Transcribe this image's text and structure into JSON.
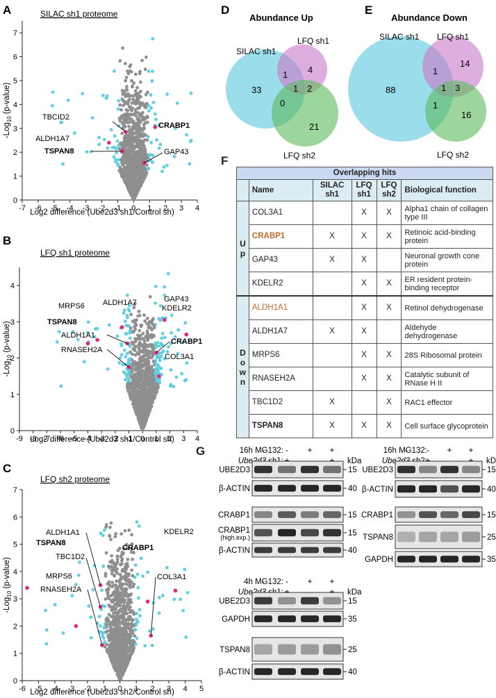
{
  "colors": {
    "grey": "#8f8f8f",
    "cyan": "#5fd0e0",
    "magenta": "#e0287a",
    "silac": "#58c6dc",
    "lfq1": "#c878c8",
    "lfq2": "#5cbb5c",
    "orange": "#c06a2a",
    "header": "#c9d9ef",
    "sub": "#dbecf3"
  },
  "panels": {
    "A": {
      "letter": "A",
      "title": "SILAC sh1 proteome",
      "xlabel": "Log2 difference (Ube2d3 sh1/Control sh)"
    },
    "B": {
      "letter": "B",
      "title": "LFQ sh1 proteome",
      "xlabel": "Log2 difference (Ube2d3 sh1/Control sh)"
    },
    "C": {
      "letter": "C",
      "title": "LFQ sh2 proteome",
      "xlabel": "Log2 difference (Ube2d3 sh2/Control sh)"
    },
    "D": {
      "letter": "D",
      "title": "Abundance Up"
    },
    "E": {
      "letter": "E",
      "title": "Abundance Down"
    },
    "F": {
      "letter": "F"
    },
    "G": {
      "letter": "G"
    }
  },
  "ylabel_prefix": "-Log",
  "ylabel_sub": "10",
  "ylabel_suffix": " (p-value)",
  "chart_data": [
    {
      "type": "scatter",
      "panel": "A",
      "xlim": [
        -7,
        4
      ],
      "ylim": [
        0,
        7.5
      ],
      "xticks": [
        "-7",
        "-6",
        "-5",
        "-4",
        "-3",
        "-2",
        "-1",
        "0",
        "1",
        "2",
        "3",
        "4"
      ],
      "yticks": [
        "0",
        "1",
        "2",
        "3",
        "4",
        "5",
        "6",
        "7"
      ],
      "highlighted": [
        {
          "label": "TBCID2",
          "x": -0.5,
          "y": 2.85,
          "bold": false
        },
        {
          "label": "CRABP1",
          "x": 1.35,
          "y": 3.05,
          "bold": true
        },
        {
          "label": "ALDH1A7",
          "x": -1.55,
          "y": 2.4,
          "bold": false
        },
        {
          "label": "TSPAN8",
          "x": -0.7,
          "y": 2.05,
          "bold": true
        },
        {
          "label": "GAP43",
          "x": 0.65,
          "y": 1.55,
          "bold": false
        }
      ]
    },
    {
      "type": "scatter",
      "panel": "B",
      "xlim": [
        -9,
        4
      ],
      "ylim": [
        0,
        4.5
      ],
      "xticks": [
        "-9",
        "-8",
        "-7",
        "-6",
        "-5",
        "-4",
        "-3",
        "-2",
        "-1",
        "0",
        "1",
        "2",
        "3",
        "4"
      ],
      "yticks": [
        "0",
        "1",
        "2",
        "3",
        "4"
      ],
      "highlighted": [
        {
          "label": "MRPS6",
          "x": -3.3,
          "y": 2.5,
          "bold": false
        },
        {
          "label": "ALDH1A7",
          "x": -1.5,
          "y": 2.85,
          "bold": false
        },
        {
          "label": "GAP43",
          "x": 1.6,
          "y": 3.05,
          "bold": false
        },
        {
          "label": "KDELR2",
          "x": 3.2,
          "y": 2.65,
          "bold": false
        },
        {
          "label": "TSPAN8",
          "x": -4.0,
          "y": 2.4,
          "bold": true
        },
        {
          "label": "ALDH1A1",
          "x": -1.1,
          "y": 2.4,
          "bold": false
        },
        {
          "label": "CRABP1",
          "x": 1.0,
          "y": 2.15,
          "bold": true
        },
        {
          "label": "RNASEH2A",
          "x": -1.0,
          "y": 1.75,
          "bold": false
        },
        {
          "label": "COL3A1",
          "x": 1.2,
          "y": 1.5,
          "bold": false
        }
      ]
    },
    {
      "type": "scatter",
      "panel": "C",
      "xlim": [
        -6,
        5
      ],
      "ylim": [
        0,
        7
      ],
      "xticks": [
        "-6",
        "-5",
        "-4",
        "-3",
        "-2",
        "-1",
        "0",
        "1",
        "2",
        "3",
        "4",
        "5"
      ],
      "yticks": [
        "0",
        "1",
        "2",
        "3",
        "4",
        "5",
        "6",
        "7"
      ],
      "highlighted": [
        {
          "label": "ALDH1A1",
          "x": -1.2,
          "y": 3.5,
          "bold": false
        },
        {
          "label": "KDELR2",
          "x": 3.4,
          "y": 3.3,
          "bold": false
        },
        {
          "label": "TSPAN8",
          "x": -5.7,
          "y": 3.4,
          "bold": true
        },
        {
          "label": "TBC1D2",
          "x": -1.2,
          "y": 2.7,
          "bold": false
        },
        {
          "label": "CRABP1",
          "x": 1.7,
          "y": 2.9,
          "bold": true
        },
        {
          "label": "MRPS6",
          "x": -2.7,
          "y": 2.0,
          "bold": false
        },
        {
          "label": "COL3A1",
          "x": 1.9,
          "y": 1.65,
          "bold": false
        },
        {
          "label": "RNASEH2A",
          "x": -1.1,
          "y": 1.3,
          "bold": false
        }
      ]
    }
  ],
  "venn": {
    "D": {
      "silac": "SILAC sh1",
      "lfq1": "LFQ sh1",
      "lfq2": "LFQ sh2",
      "n_silac": "33",
      "n_lfq1": "4",
      "n_lfq2": "21",
      "n_s1": "1",
      "n_s2": "0",
      "n_12": "2",
      "n_all": "1"
    },
    "E": {
      "silac": "SILAC sh1",
      "lfq1": "LFQ sh1",
      "lfq2": "LFQ sh2",
      "n_silac": "88",
      "n_lfq1": "14",
      "n_lfq2": "16",
      "n_s1": "1",
      "n_s2": "1",
      "n_12": "3",
      "n_all": "1"
    }
  },
  "table": {
    "header": "Overlapping hits",
    "columns": [
      "Name",
      "SILAC sh1",
      "LFQ sh1",
      "LFQ sh2",
      "Biological function"
    ],
    "group_up": "Up",
    "group_down": "Down",
    "rows": [
      {
        "name": "COL3A1",
        "c1": "",
        "c2": "X",
        "c3": "X",
        "func": "Alpha1 chain of collagen type III"
      },
      {
        "name": "CRABP1",
        "c1": "X",
        "c2": "X",
        "c3": "X",
        "func": "Retinoic acid-binding protein"
      },
      {
        "name": "GAP43",
        "c1": "X",
        "c2": "X",
        "c3": "",
        "func": "Neuronal growth cone protein"
      },
      {
        "name": "KDELR2",
        "c1": "",
        "c2": "X",
        "c3": "X",
        "func": "ER resident protein-binding receptor"
      },
      {
        "name": "ALDH1A1",
        "c1": "",
        "c2": "X",
        "c3": "X",
        "func": "Retinol dehydrogenase"
      },
      {
        "name": "ALDH1A7",
        "c1": "X",
        "c2": "X",
        "c3": "",
        "func": "Aldehyde dehydrogenase"
      },
      {
        "name": "MRPS6",
        "c1": "",
        "c2": "X",
        "c3": "X",
        "func": "28S Ribosomal protein"
      },
      {
        "name": "RNASEH2A",
        "c1": "",
        "c2": "X",
        "c3": "X",
        "func": "Catalytic subunit of RNase H II"
      },
      {
        "name": "TBC1D2",
        "c1": "X",
        "c2": "",
        "c3": "X",
        "func": "RAC1 effector"
      },
      {
        "name": "TSPAN8",
        "c1": "X",
        "c2": "X",
        "c3": "X",
        "func": "Cell surface glycoprotein"
      }
    ]
  },
  "blots": {
    "b1": {
      "mg": "16h MG132:",
      "ube": "Ube2d3",
      "sh": " sh1:",
      "signs_mg": [
        "-",
        "-",
        "+",
        "+"
      ],
      "signs_sh": [
        "-",
        "+",
        "-",
        "+"
      ],
      "kda": "kDa",
      "rows": [
        {
          "label": "UBE2D3",
          "mw": "15"
        },
        {
          "label": "β-ACTIN",
          "mw": "40"
        },
        {
          "label": "CRABP1",
          "mw": "15"
        },
        {
          "label": "CRABP1",
          "sub": "(high.exp.)",
          "mw": "15"
        },
        {
          "label": "β-ACTIN",
          "mw": "40"
        }
      ]
    },
    "b2": {
      "mg": "16h MG132:",
      "ube": "Ube2d3",
      "sh": " sh2:",
      "signs_mg": [
        "-",
        "-",
        "+",
        "+"
      ],
      "signs_sh": [
        "-",
        "+",
        "-",
        "+"
      ],
      "kda": "kDa",
      "rows": [
        {
          "label": "UBE2D3",
          "mw": "15"
        },
        {
          "label": "β-ACTIN",
          "mw": "40"
        },
        {
          "label": "CRABP1",
          "mw": "15"
        },
        {
          "label": "TSPAN8",
          "mw": "25"
        },
        {
          "label": "GAPDH",
          "mw": "35"
        }
      ]
    },
    "b3": {
      "mg": "4h MG132:",
      "ube": "Ube2d3",
      "sh": " sh1:",
      "signs_mg": [
        "-",
        "-",
        "+",
        "+"
      ],
      "signs_sh": [
        "-",
        "+",
        "-",
        "+"
      ],
      "kda": "kDa",
      "rows": [
        {
          "label": "UBE2D3",
          "mw": "15"
        },
        {
          "label": "GAPDH",
          "mw": "35"
        },
        {
          "label": "TSPAN8",
          "mw": "25"
        },
        {
          "label": "β-ACTIN",
          "mw": "40"
        }
      ]
    }
  }
}
